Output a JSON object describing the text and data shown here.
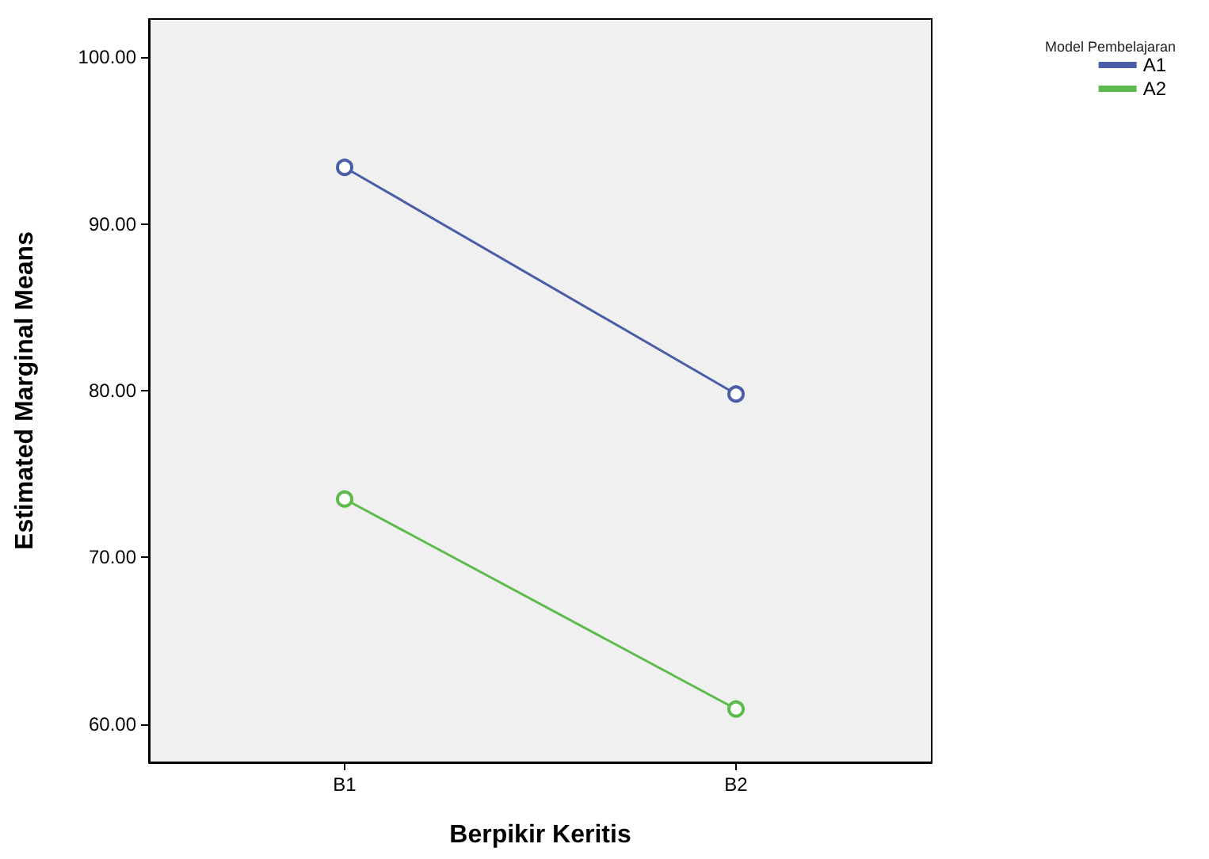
{
  "chart_data": {
    "type": "line",
    "xlabel": "Berpikir Keritis",
    "ylabel": "Estimated Marginal Means",
    "legend_title": "Model Pembelajaran",
    "categories": [
      "B1",
      "B2"
    ],
    "series": [
      {
        "name": "A1",
        "color": "#4a5ea8",
        "values": [
          93.4,
          79.8
        ]
      },
      {
        "name": "A2",
        "color": "#5cbb4c",
        "values": [
          73.5,
          60.9
        ]
      }
    ],
    "ylim": [
      57.7,
      102.3
    ],
    "yticks": [
      {
        "value": 60,
        "label": "60.00"
      },
      {
        "value": 70,
        "label": "70.00"
      },
      {
        "value": 80,
        "label": "80.00"
      },
      {
        "value": 90,
        "label": "90.00"
      },
      {
        "value": 100,
        "label": "100.00"
      }
    ],
    "grid": false,
    "legend": "top right",
    "marker": "circle",
    "line_style": "solid"
  }
}
